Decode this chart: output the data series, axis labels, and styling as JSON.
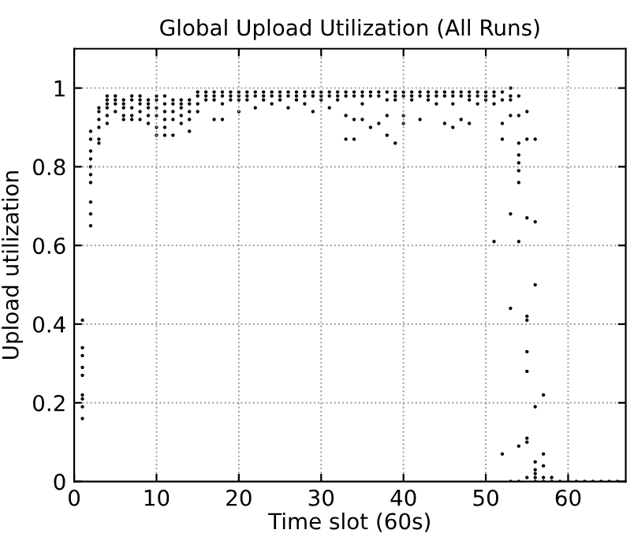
{
  "chart_data": {
    "type": "scatter",
    "title": "Global Upload Utilization (All Runs)",
    "xlabel": "Time slot (60s)",
    "ylabel": "Upload utilization",
    "xlim": [
      0,
      67
    ],
    "ylim": [
      0,
      1.1
    ],
    "xticks": [
      0,
      10,
      20,
      30,
      40,
      50,
      60
    ],
    "yticks": [
      0,
      0.2,
      0.4,
      0.6,
      0.8,
      1
    ],
    "grid": true,
    "marker": "circle",
    "series": [
      {
        "color": "#000000",
        "x": [
          1,
          1,
          1,
          1,
          1,
          1,
          1,
          1,
          1,
          2,
          2,
          2,
          2,
          2,
          2,
          2,
          2,
          2,
          2,
          3,
          3,
          3,
          3,
          3,
          3,
          4,
          4,
          4,
          4,
          4,
          4,
          5,
          5,
          5,
          5,
          6,
          6,
          6,
          6,
          6,
          7,
          7,
          7,
          7,
          7,
          8,
          8,
          8,
          8,
          8,
          9,
          9,
          9,
          9,
          9,
          10,
          10,
          10,
          10,
          10,
          10,
          11,
          11,
          11,
          11,
          11,
          11,
          12,
          12,
          12,
          12,
          12,
          13,
          13,
          13,
          13,
          13,
          14,
          14,
          14,
          14,
          14,
          15,
          15,
          15,
          15,
          16,
          16,
          16,
          17,
          17,
          17,
          17,
          18,
          18,
          18,
          18,
          19,
          19,
          19,
          20,
          20,
          20,
          20,
          21,
          21,
          21,
          22,
          22,
          22,
          23,
          23,
          23,
          24,
          24,
          24,
          25,
          25,
          25,
          26,
          26,
          26,
          27,
          27,
          27,
          28,
          28,
          28,
          29,
          29,
          29,
          30,
          30,
          30,
          31,
          31,
          31,
          32,
          32,
          32,
          33,
          33,
          33,
          33,
          34,
          34,
          34,
          34,
          35,
          35,
          35,
          35,
          36,
          36,
          36,
          37,
          37,
          37,
          38,
          38,
          38,
          38,
          39,
          39,
          39,
          39,
          40,
          40,
          40,
          40,
          41,
          41,
          41,
          42,
          42,
          42,
          43,
          43,
          43,
          44,
          44,
          44,
          45,
          45,
          45,
          46,
          46,
          46,
          46,
          47,
          47,
          47,
          48,
          48,
          48,
          48,
          49,
          49,
          49,
          50,
          50,
          50,
          51,
          51,
          51,
          51,
          52,
          52,
          52,
          52,
          52,
          53,
          53,
          53,
          53,
          53,
          53,
          53,
          54,
          54,
          54,
          54,
          54,
          54,
          54,
          54,
          54,
          54,
          55,
          55,
          55,
          55,
          55,
          55,
          55,
          55,
          55,
          55,
          56,
          56,
          56,
          56,
          56,
          56,
          56,
          56,
          56,
          57,
          57,
          57,
          57,
          57,
          58,
          58,
          59,
          60,
          61,
          62,
          63,
          64,
          65,
          66
        ],
        "values": [
          0.41,
          0.34,
          0.32,
          0.29,
          0.27,
          0.22,
          0.21,
          0.19,
          0.16,
          0.89,
          0.87,
          0.84,
          0.82,
          0.8,
          0.78,
          0.76,
          0.71,
          0.68,
          0.65,
          0.95,
          0.94,
          0.92,
          0.9,
          0.87,
          0.86,
          0.98,
          0.97,
          0.96,
          0.95,
          0.93,
          0.91,
          0.98,
          0.97,
          0.96,
          0.94,
          0.97,
          0.96,
          0.95,
          0.93,
          0.92,
          0.98,
          0.97,
          0.95,
          0.93,
          0.92,
          0.98,
          0.97,
          0.96,
          0.94,
          0.92,
          0.97,
          0.96,
          0.95,
          0.93,
          0.91,
          0.98,
          0.97,
          0.95,
          0.93,
          0.9,
          0.88,
          0.98,
          0.96,
          0.94,
          0.92,
          0.9,
          0.88,
          0.97,
          0.96,
          0.94,
          0.92,
          0.88,
          0.97,
          0.96,
          0.95,
          0.93,
          0.91,
          0.97,
          0.96,
          0.94,
          0.92,
          0.89,
          0.99,
          0.98,
          0.96,
          0.94,
          0.99,
          0.98,
          0.97,
          0.99,
          0.98,
          0.97,
          0.92,
          0.99,
          0.98,
          0.96,
          0.92,
          0.99,
          0.98,
          0.97,
          0.99,
          0.98,
          0.97,
          0.94,
          0.99,
          0.98,
          0.97,
          0.99,
          0.98,
          0.95,
          0.99,
          0.98,
          0.97,
          0.99,
          0.98,
          0.96,
          0.99,
          0.98,
          0.97,
          0.99,
          0.98,
          0.95,
          0.99,
          0.98,
          0.97,
          0.99,
          0.98,
          0.96,
          0.99,
          0.98,
          0.94,
          0.99,
          0.98,
          0.97,
          0.99,
          0.98,
          0.95,
          0.99,
          0.98,
          0.97,
          0.99,
          0.98,
          0.93,
          0.87,
          0.99,
          0.98,
          0.92,
          0.87,
          0.99,
          0.98,
          0.96,
          0.92,
          0.99,
          0.98,
          0.9,
          0.99,
          0.98,
          0.91,
          0.99,
          0.97,
          0.93,
          0.88,
          0.99,
          0.98,
          0.97,
          0.86,
          0.99,
          0.98,
          0.93,
          0.91,
          0.99,
          0.98,
          0.97,
          0.99,
          0.98,
          0.92,
          0.99,
          0.98,
          0.97,
          0.99,
          0.98,
          0.96,
          0.99,
          0.98,
          0.91,
          0.99,
          0.98,
          0.96,
          0.9,
          0.99,
          0.98,
          0.92,
          0.99,
          0.98,
          0.97,
          0.91,
          0.99,
          0.98,
          0.96,
          0.99,
          0.98,
          0.97,
          0.99,
          0.98,
          0.96,
          0.61,
          0.99,
          0.97,
          0.91,
          0.87,
          0.07,
          1.0,
          0.98,
          0.97,
          0.93,
          0.68,
          0.44,
          0.0,
          0.98,
          0.93,
          0.86,
          0.83,
          0.81,
          0.79,
          0.76,
          0.61,
          0.09,
          0.0,
          0.94,
          0.87,
          0.67,
          0.42,
          0.41,
          0.33,
          0.28,
          0.1,
          0.11,
          0.01,
          0.87,
          0.66,
          0.5,
          0.19,
          0.05,
          0.03,
          0.02,
          0.01,
          0.0,
          0.22,
          0.07,
          0.04,
          0.01,
          0.0,
          0.01,
          0.0,
          0.0,
          0.0,
          0.0,
          0.0,
          0.0,
          0.0,
          0.0,
          0.0
        ]
      }
    ]
  }
}
